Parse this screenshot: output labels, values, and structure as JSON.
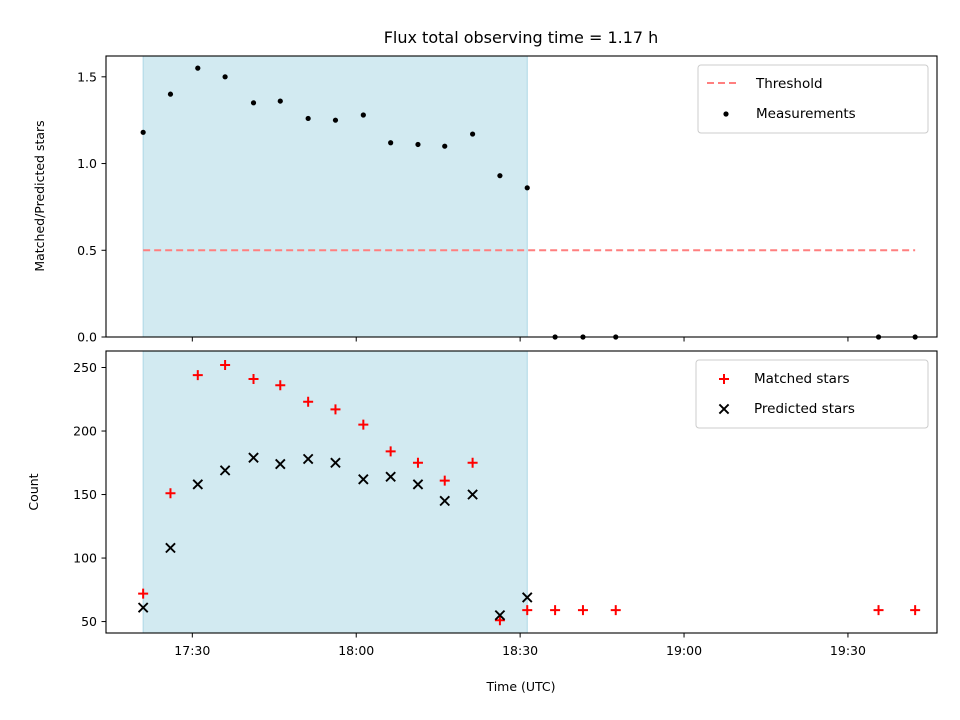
{
  "chart_data": {
    "title": "Flux total observing time = 1.17 h",
    "xlabel": "Time (UTC)",
    "x_ticks": [
      "17:30",
      "18:00",
      "18:30",
      "19:00",
      "19:30"
    ],
    "x_tick_minutes": [
      1050,
      1080,
      1110,
      1140,
      1170
    ],
    "xlim": [
      "17:14",
      "19:46"
    ],
    "xlim_minutes": [
      1034.2,
      1186.3
    ],
    "shaded_span": [
      "17:22",
      "18:32"
    ],
    "shaded_span_minutes": [
      1041.0,
      1111.3
    ],
    "shade_color": "#add8e6",
    "panels": [
      {
        "type": "scatter",
        "ylabel": "Matched/Predicted stars",
        "ylim": [
          0,
          1.62
        ],
        "y_ticks": [
          "0.0",
          "0.5",
          "1.0",
          "1.5"
        ],
        "y_tick_values": [
          0,
          0.5,
          1.0,
          1.5
        ],
        "legend_position": "top-right",
        "series": [
          {
            "name": "Threshold",
            "kind": "dashed-line",
            "color": "#ff7f7f",
            "x": [
              "17:22",
              "19:42"
            ],
            "x_minutes": [
              1041.0,
              1182.3
            ],
            "y": [
              0.5,
              0.5
            ]
          },
          {
            "name": "Measurements",
            "kind": "dot",
            "color": "#000000",
            "x": [
              "17:22",
              "17:27",
              "17:32",
              "17:37",
              "17:42",
              "17:47",
              "17:52",
              "17:57",
              "18:02",
              "18:07",
              "18:12",
              "18:17",
              "18:22",
              "18:27",
              "18:32",
              "18:37",
              "18:42",
              "18:48",
              "19:35",
              "19:41"
            ],
            "x_minutes": [
              1041.0,
              1046.0,
              1051.0,
              1056.0,
              1061.2,
              1066.1,
              1071.2,
              1076.2,
              1081.3,
              1086.3,
              1091.3,
              1096.2,
              1101.3,
              1106.3,
              1111.3,
              1116.4,
              1121.5,
              1127.5,
              1175.6,
              1182.3
            ],
            "y": [
              1.18,
              1.4,
              1.55,
              1.5,
              1.35,
              1.36,
              1.26,
              1.25,
              1.28,
              1.12,
              1.11,
              1.1,
              1.17,
              0.93,
              0.86,
              0.0,
              0.0,
              0.0,
              0.0,
              0.0
            ]
          }
        ]
      },
      {
        "type": "scatter",
        "ylabel": "Count",
        "ylim": [
          41,
          263
        ],
        "y_ticks": [
          "50",
          "100",
          "150",
          "200",
          "250"
        ],
        "y_tick_values": [
          50,
          100,
          150,
          200,
          250
        ],
        "legend_position": "top-right",
        "series": [
          {
            "name": "Matched stars",
            "kind": "plus",
            "color": "#ff0000",
            "x": [
              "17:22",
              "17:27",
              "17:32",
              "17:37",
              "17:42",
              "17:47",
              "17:52",
              "17:57",
              "18:02",
              "18:07",
              "18:12",
              "18:17",
              "18:22",
              "18:27",
              "18:32",
              "18:37",
              "18:42",
              "18:48",
              "19:35",
              "19:41"
            ],
            "x_minutes": [
              1041.0,
              1046.0,
              1051.0,
              1056.0,
              1061.2,
              1066.1,
              1071.2,
              1076.2,
              1081.3,
              1086.3,
              1091.3,
              1096.2,
              1101.3,
              1106.3,
              1111.3,
              1116.4,
              1121.5,
              1127.5,
              1175.6,
              1182.3
            ],
            "y": [
              72,
              151,
              244,
              252,
              241,
              236,
              223,
              217,
              205,
              184,
              175,
              161,
              175,
              51,
              59,
              59,
              59,
              59,
              59,
              59
            ]
          },
          {
            "name": "Predicted stars",
            "kind": "x",
            "color": "#000000",
            "x": [
              "17:22",
              "17:27",
              "17:32",
              "17:37",
              "17:42",
              "17:47",
              "17:52",
              "17:57",
              "18:02",
              "18:07",
              "18:12",
              "18:17",
              "18:22",
              "18:27",
              "18:32"
            ],
            "x_minutes": [
              1041.0,
              1046.0,
              1051.0,
              1056.0,
              1061.2,
              1066.1,
              1071.2,
              1076.2,
              1081.3,
              1086.3,
              1091.3,
              1096.2,
              1101.3,
              1106.3,
              1111.3
            ],
            "y": [
              61,
              108,
              158,
              169,
              179,
              174,
              178,
              175,
              162,
              164,
              158,
              145,
              150,
              55,
              69
            ]
          }
        ]
      }
    ]
  }
}
